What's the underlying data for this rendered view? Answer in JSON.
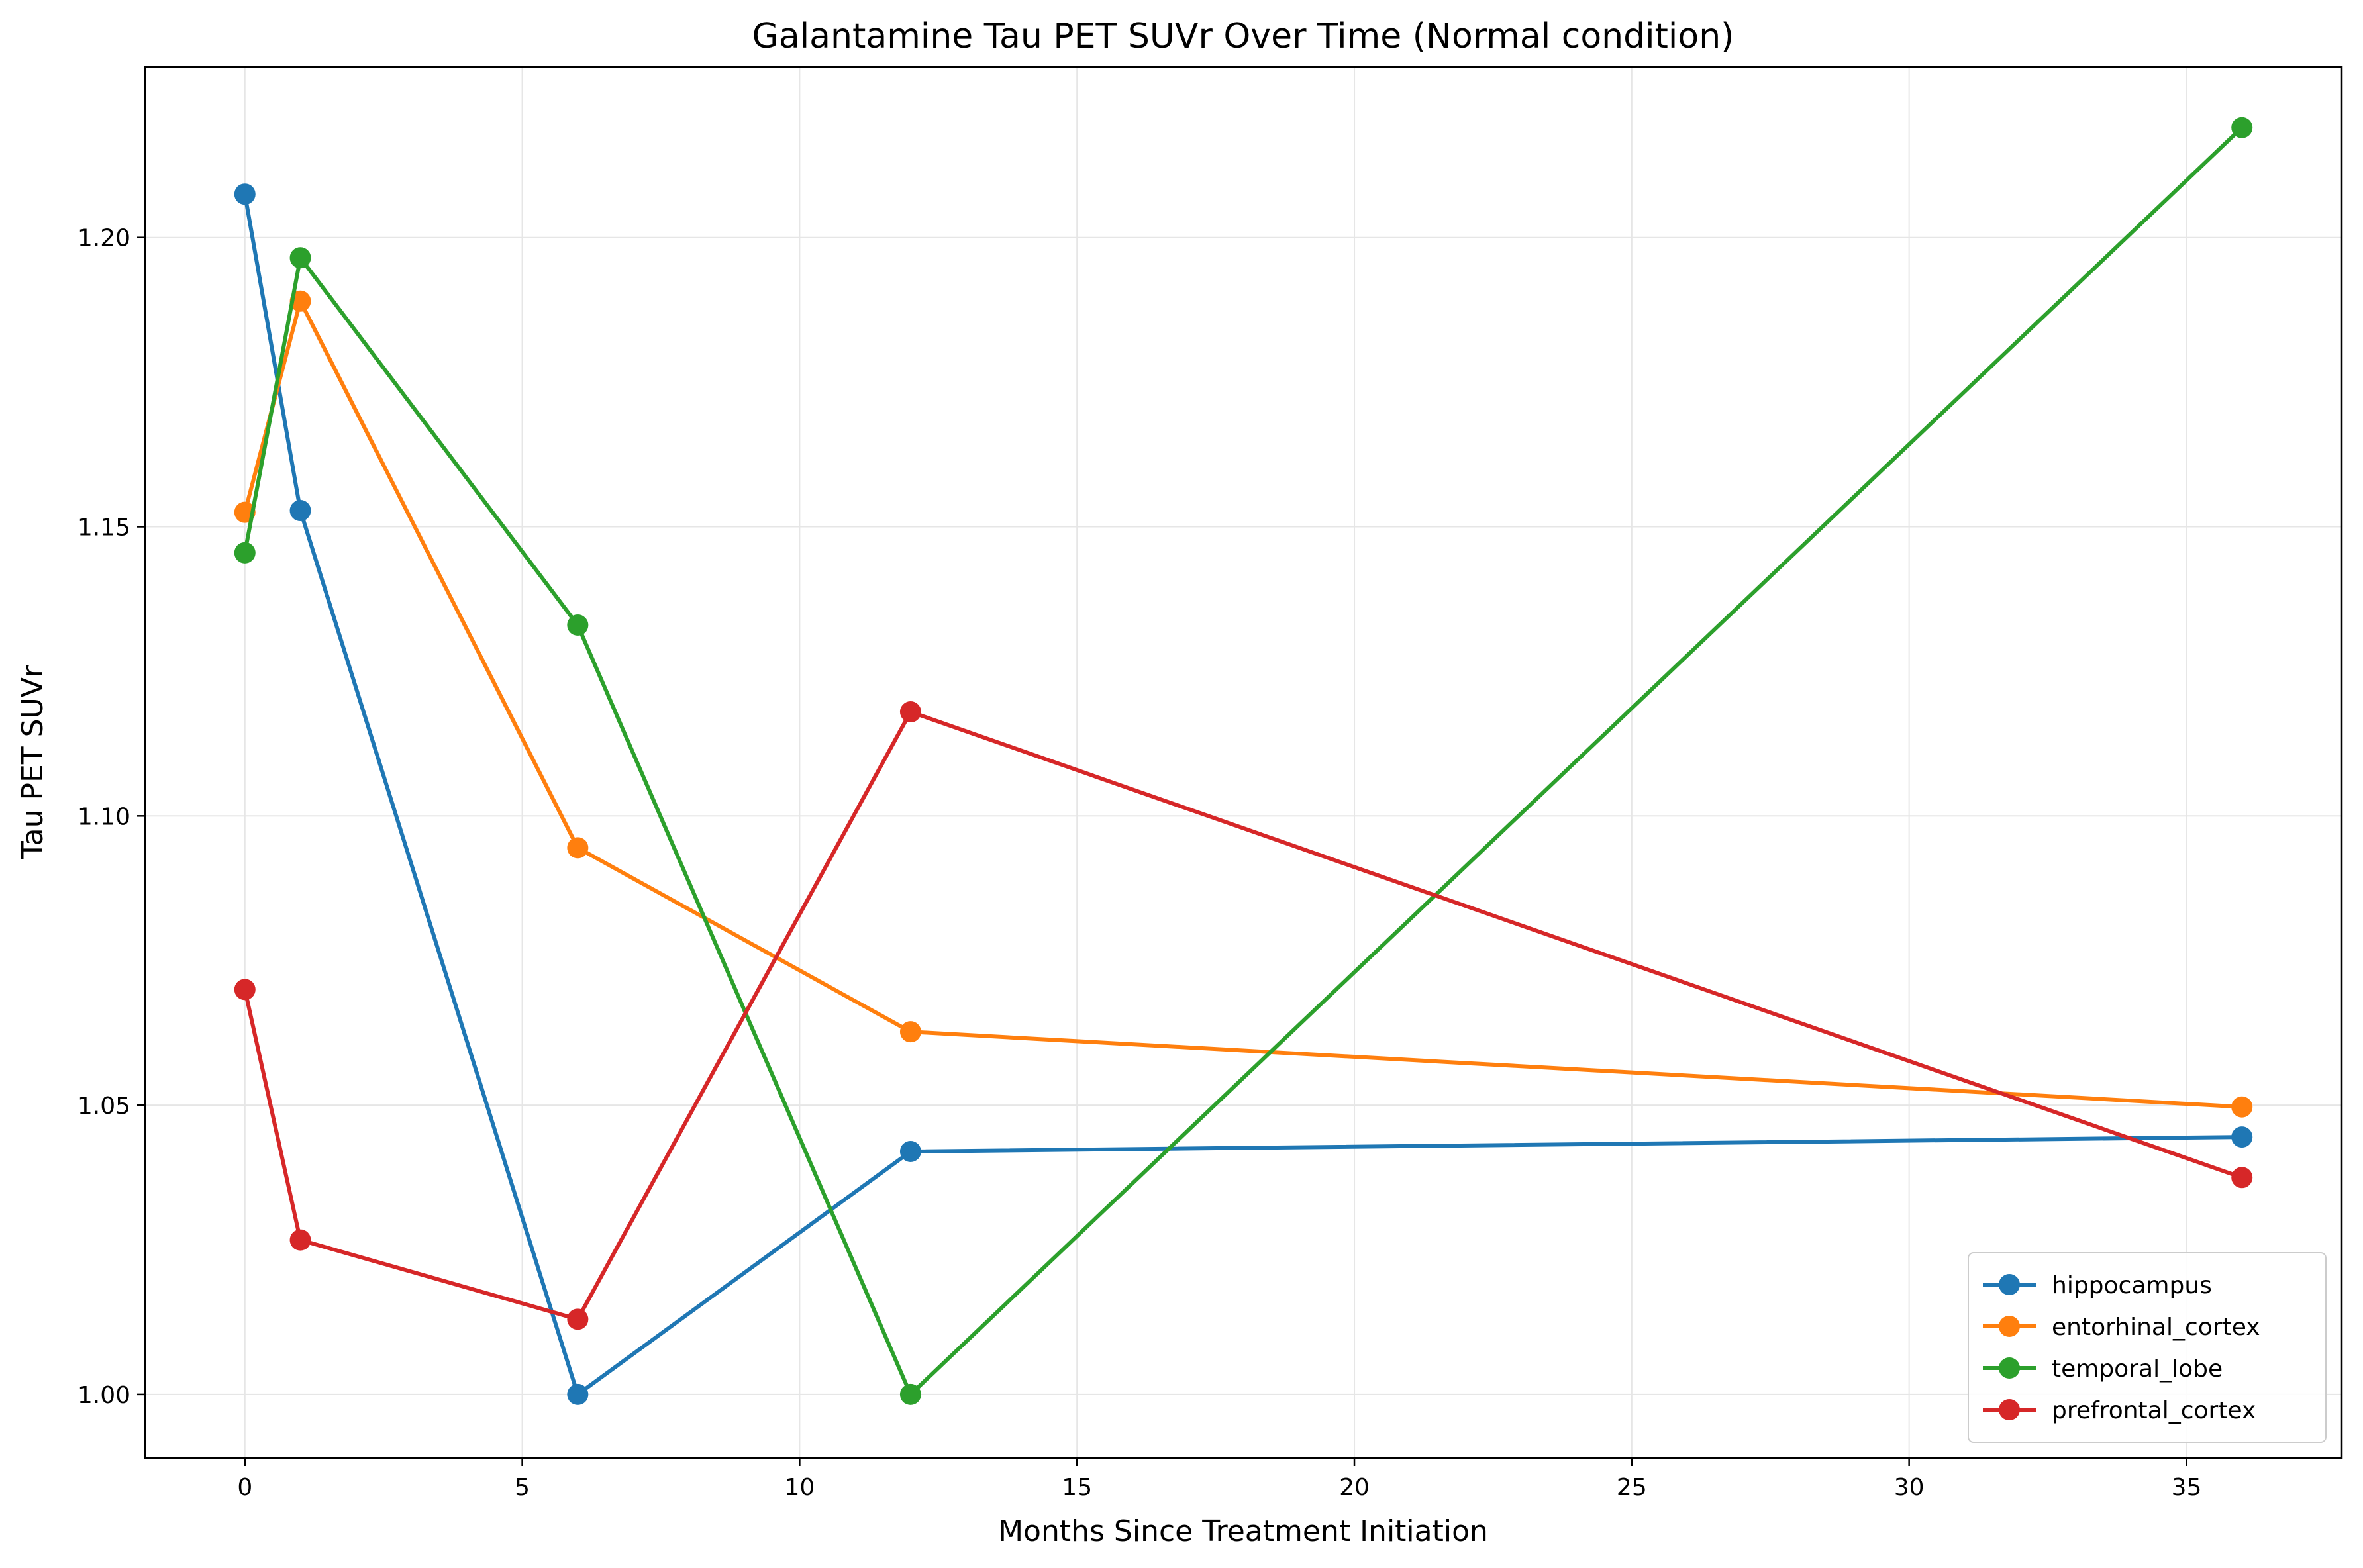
{
  "chart_data": {
    "type": "line",
    "title": "Galantamine Tau PET SUVr Over Time (Normal condition)",
    "xlabel": "Months Since Treatment Initiation",
    "ylabel": "Tau PET SUVr",
    "xlim": [
      -1.8,
      37.8
    ],
    "ylim": [
      0.989,
      1.2295
    ],
    "xticks": [
      0,
      5,
      10,
      15,
      20,
      25,
      30,
      35
    ],
    "yticks": [
      1.0,
      1.05,
      1.1,
      1.15,
      1.2
    ],
    "xtick_labels": [
      "0",
      "5",
      "10",
      "15",
      "20",
      "25",
      "30",
      "35"
    ],
    "ytick_labels": [
      "1.00",
      "1.05",
      "1.10",
      "1.15",
      "1.20"
    ],
    "grid": true,
    "legend_position": "lower-right",
    "x": [
      0,
      1,
      6,
      12,
      36
    ],
    "series": [
      {
        "name": "hippocampus",
        "color": "#1f77b4",
        "values": [
          1.2075,
          1.1528,
          1.0,
          1.042,
          1.0445
        ]
      },
      {
        "name": "entorhinal_cortex",
        "color": "#ff7f0e",
        "values": [
          1.1525,
          1.189,
          1.0945,
          1.0627,
          1.0497
        ]
      },
      {
        "name": "temporal_lobe",
        "color": "#2ca02c",
        "values": [
          1.1455,
          1.1965,
          1.133,
          1.0,
          1.219
        ]
      },
      {
        "name": "prefrontal_cortex",
        "color": "#d62728",
        "values": [
          1.07,
          1.0267,
          1.013,
          1.118,
          1.0375
        ]
      }
    ]
  }
}
